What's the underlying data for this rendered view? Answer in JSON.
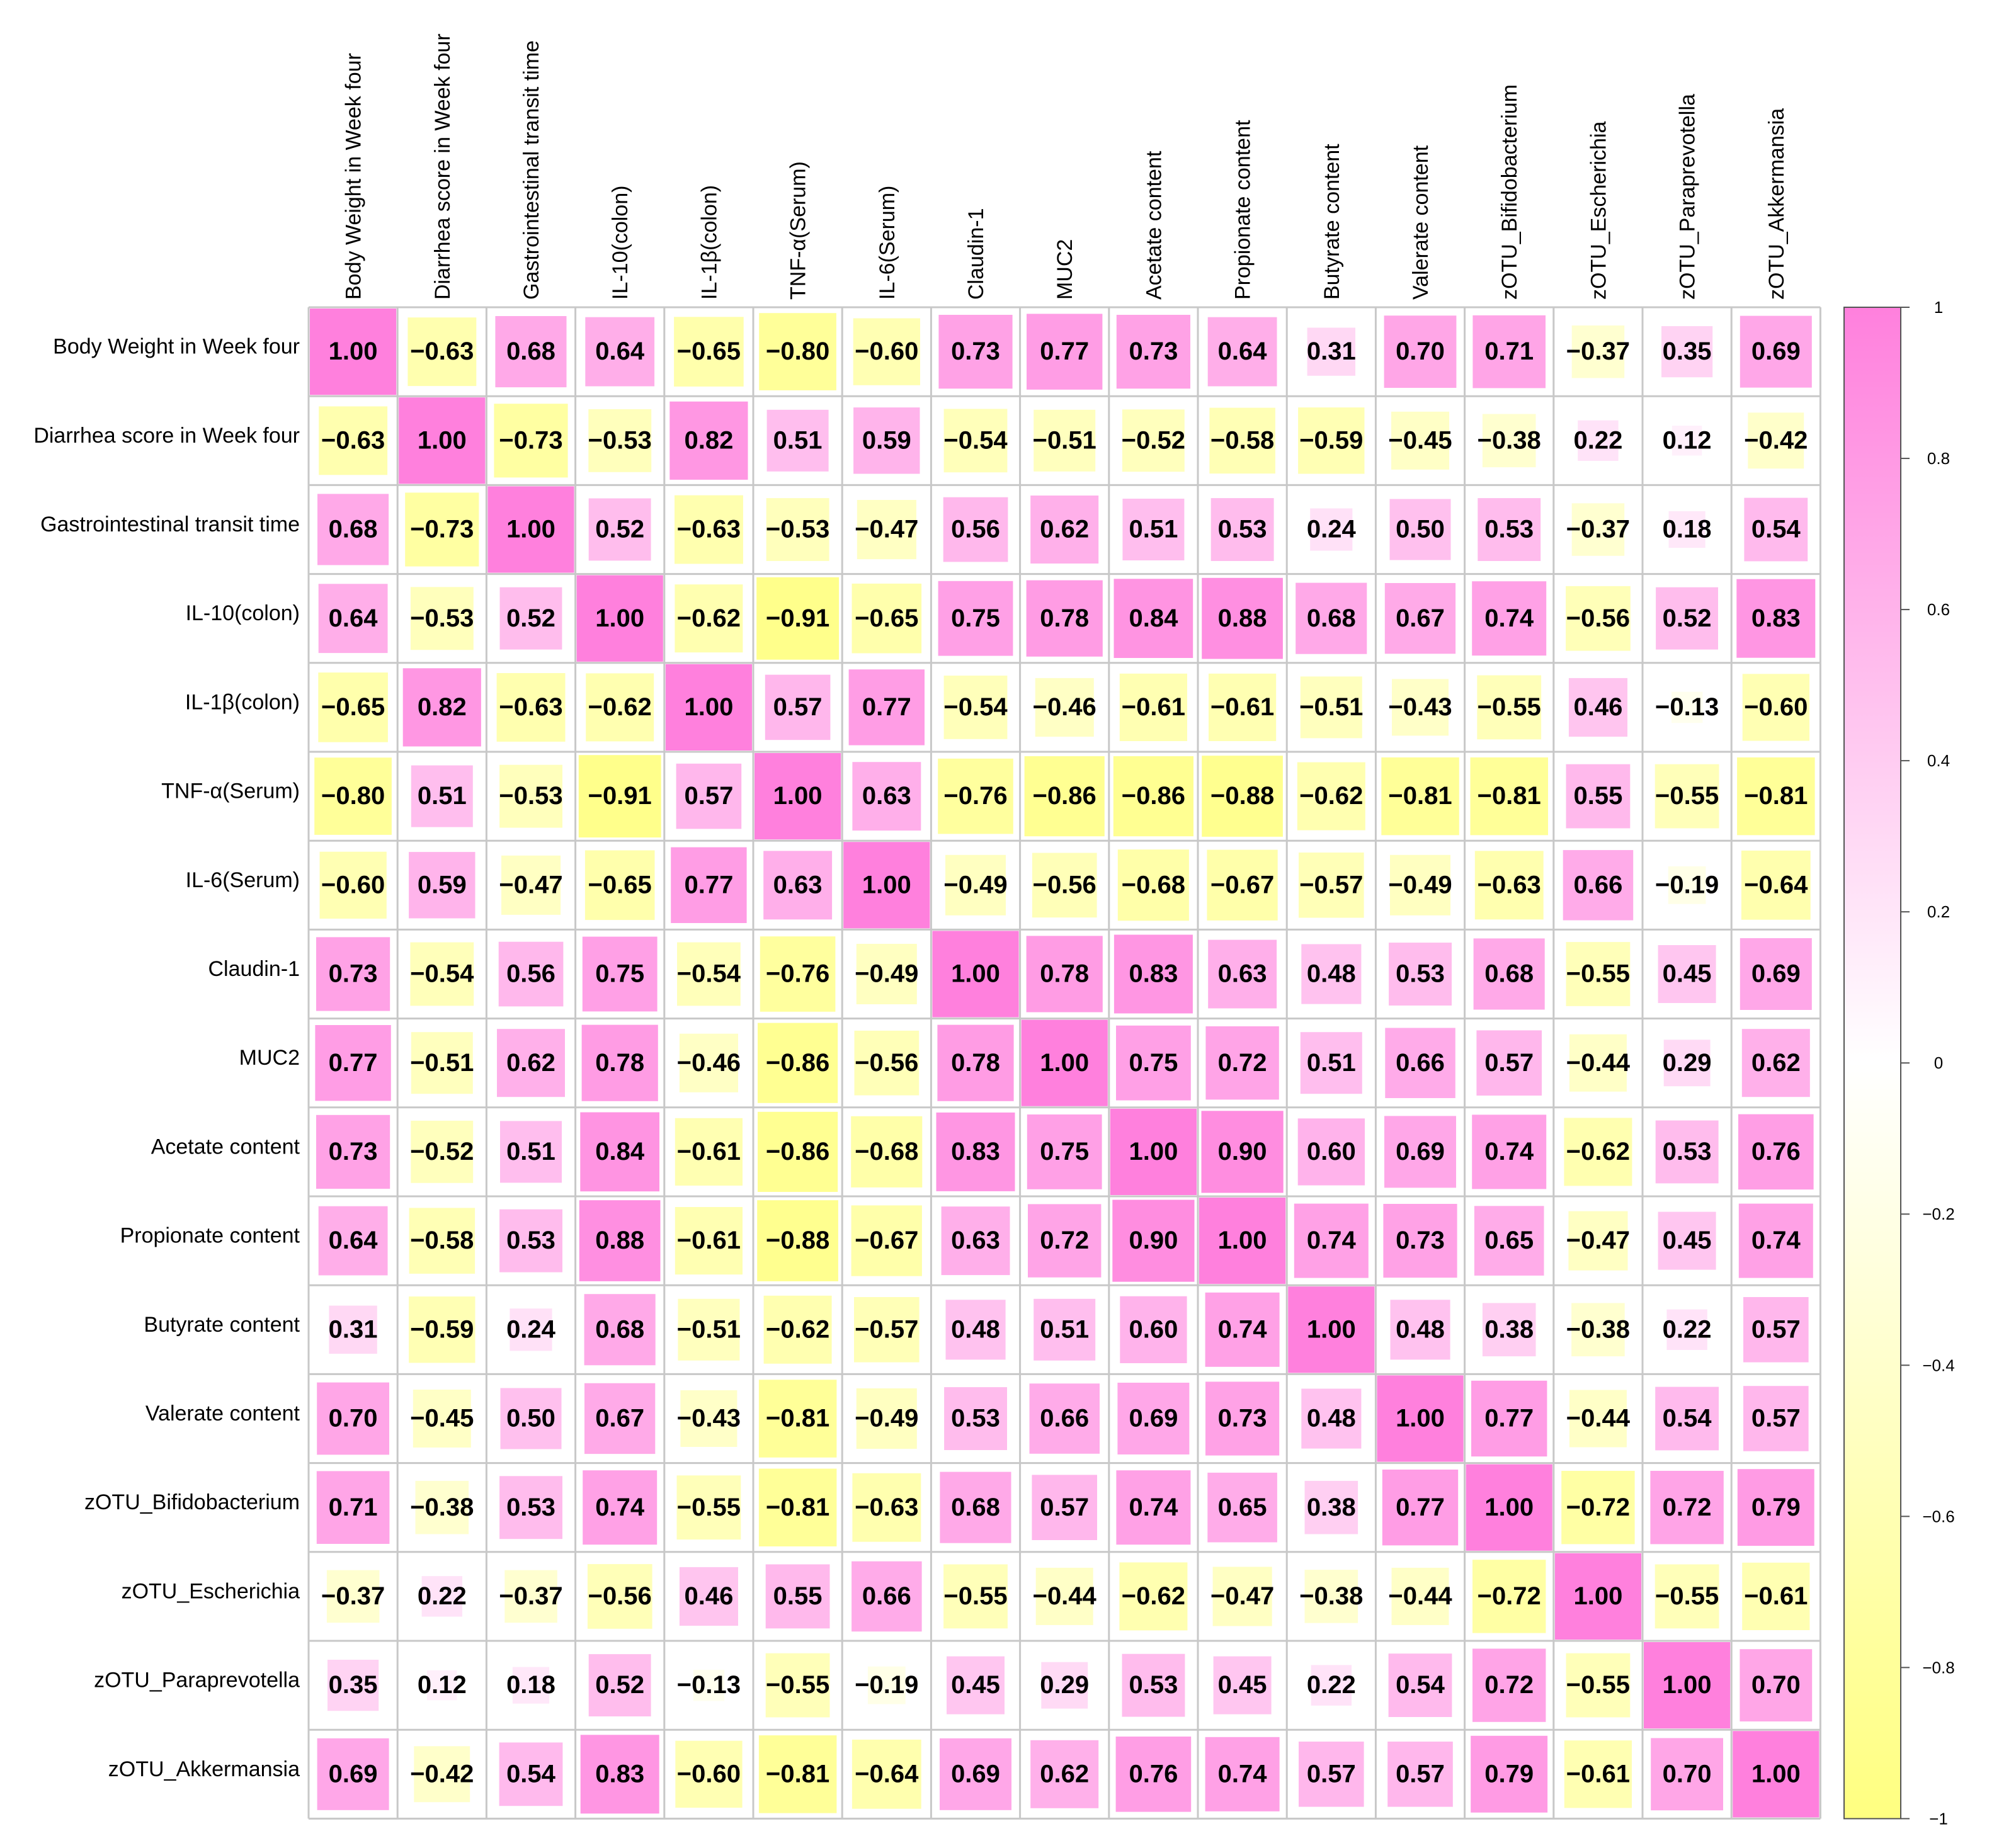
{
  "chart_data": {
    "type": "heatmap",
    "variables": [
      "Body Weight in Week four",
      "Diarrhea score in Week four",
      "Gastrointestinal transit time",
      "IL-10(colon)",
      "IL-1β(colon)",
      "TNF-α(Serum)",
      "IL-6(Serum)",
      "Claudin-1",
      "MUC2",
      "Acetate content",
      "Propionate content",
      "Butyrate content",
      "Valerate content",
      "zOTU_Bifidobacterium",
      "zOTU_Escherichia",
      "zOTU_Paraprevotella",
      "zOTU_Akkermansia"
    ],
    "matrix": [
      [
        1.0,
        -0.63,
        0.68,
        0.64,
        -0.65,
        -0.8,
        -0.6,
        0.73,
        0.77,
        0.73,
        0.64,
        0.31,
        0.7,
        0.71,
        -0.37,
        0.35,
        0.69
      ],
      [
        -0.63,
        1.0,
        -0.73,
        -0.53,
        0.82,
        0.51,
        0.59,
        -0.54,
        -0.51,
        -0.52,
        -0.58,
        -0.59,
        -0.45,
        -0.38,
        0.22,
        0.12,
        -0.42
      ],
      [
        0.68,
        -0.73,
        1.0,
        0.52,
        -0.63,
        -0.53,
        -0.47,
        0.56,
        0.62,
        0.51,
        0.53,
        0.24,
        0.5,
        0.53,
        -0.37,
        0.18,
        0.54
      ],
      [
        0.64,
        -0.53,
        0.52,
        1.0,
        -0.62,
        -0.91,
        -0.65,
        0.75,
        0.78,
        0.84,
        0.88,
        0.68,
        0.67,
        0.74,
        -0.56,
        0.52,
        0.83
      ],
      [
        -0.65,
        0.82,
        -0.63,
        -0.62,
        1.0,
        0.57,
        0.77,
        -0.54,
        -0.46,
        -0.61,
        -0.61,
        -0.51,
        -0.43,
        -0.55,
        0.46,
        -0.13,
        -0.6
      ],
      [
        -0.8,
        0.51,
        -0.53,
        -0.91,
        0.57,
        1.0,
        0.63,
        -0.76,
        -0.86,
        -0.86,
        -0.88,
        -0.62,
        -0.81,
        -0.81,
        0.55,
        -0.55,
        -0.81
      ],
      [
        -0.6,
        0.59,
        -0.47,
        -0.65,
        0.77,
        0.63,
        1.0,
        -0.49,
        -0.56,
        -0.68,
        -0.67,
        -0.57,
        -0.49,
        -0.63,
        0.66,
        -0.19,
        -0.64
      ],
      [
        0.73,
        -0.54,
        0.56,
        0.75,
        -0.54,
        -0.76,
        -0.49,
        1.0,
        0.78,
        0.83,
        0.63,
        0.48,
        0.53,
        0.68,
        -0.55,
        0.45,
        0.69
      ],
      [
        0.77,
        -0.51,
        0.62,
        0.78,
        -0.46,
        -0.86,
        -0.56,
        0.78,
        1.0,
        0.75,
        0.72,
        0.51,
        0.66,
        0.57,
        -0.44,
        0.29,
        0.62
      ],
      [
        0.73,
        -0.52,
        0.51,
        0.84,
        -0.61,
        -0.86,
        -0.68,
        0.83,
        0.75,
        1.0,
        0.9,
        0.6,
        0.69,
        0.74,
        -0.62,
        0.53,
        0.76
      ],
      [
        0.64,
        -0.58,
        0.53,
        0.88,
        -0.61,
        -0.88,
        -0.67,
        0.63,
        0.72,
        0.9,
        1.0,
        0.74,
        0.73,
        0.65,
        -0.47,
        0.45,
        0.74
      ],
      [
        0.31,
        -0.59,
        0.24,
        0.68,
        -0.51,
        -0.62,
        -0.57,
        0.48,
        0.51,
        0.6,
        0.74,
        1.0,
        0.48,
        0.38,
        -0.38,
        0.22,
        0.57
      ],
      [
        0.7,
        -0.45,
        0.5,
        0.67,
        -0.43,
        -0.81,
        -0.49,
        0.53,
        0.66,
        0.69,
        0.73,
        0.48,
        1.0,
        0.77,
        -0.44,
        0.54,
        0.57
      ],
      [
        0.71,
        -0.38,
        0.53,
        0.74,
        -0.55,
        -0.81,
        -0.63,
        0.68,
        0.57,
        0.74,
        0.65,
        0.38,
        0.77,
        1.0,
        -0.72,
        0.72,
        0.79
      ],
      [
        -0.37,
        0.22,
        -0.37,
        -0.56,
        0.46,
        0.55,
        0.66,
        -0.55,
        -0.44,
        -0.62,
        -0.47,
        -0.38,
        -0.44,
        -0.72,
        1.0,
        -0.55,
        -0.61
      ],
      [
        0.35,
        0.12,
        0.18,
        0.52,
        -0.13,
        -0.55,
        -0.19,
        0.45,
        0.29,
        0.53,
        0.45,
        0.22,
        0.54,
        0.72,
        -0.55,
        1.0,
        0.7
      ],
      [
        0.69,
        -0.42,
        0.54,
        0.83,
        -0.6,
        -0.81,
        -0.64,
        0.69,
        0.62,
        0.76,
        0.74,
        0.57,
        0.57,
        0.79,
        -0.61,
        0.7,
        1.0
      ]
    ],
    "value_range": [
      -1,
      1
    ],
    "colorbar": {
      "ticks": [
        "1",
        "0.8",
        "0.6",
        "0.4",
        "0.2",
        "0",
        "−0.2",
        "−0.4",
        "−0.6",
        "−0.8",
        "−1"
      ],
      "tick_values": [
        1,
        0.8,
        0.6,
        0.4,
        0.2,
        0,
        -0.2,
        -0.4,
        -0.6,
        -0.8,
        -1
      ],
      "low_color": "#FFFF80",
      "mid_color": "#FFFFFF",
      "high_color": "#FF80DD",
      "placement": "right"
    },
    "grid": true
  }
}
